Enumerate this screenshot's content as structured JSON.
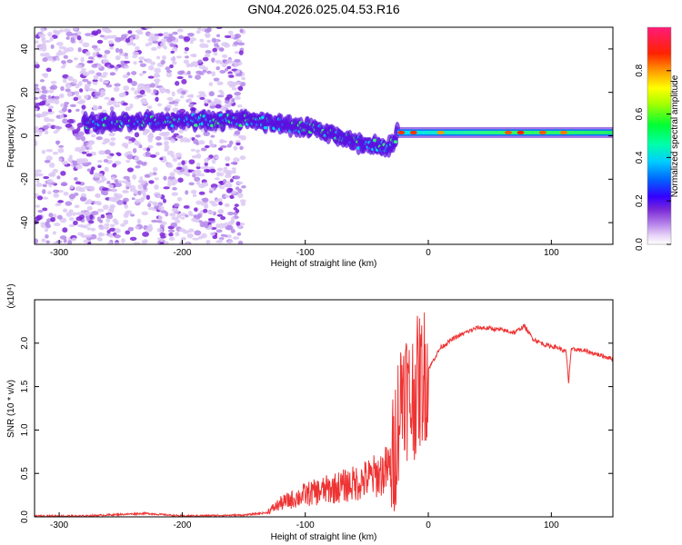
{
  "title": "GN04.2026.025.04.53.R16",
  "chart_data": [
    {
      "type": "heatmap",
      "name": "spectrogram",
      "xlabel": "Height of straight line (km)",
      "ylabel": "Frequency (Hz)",
      "xlim": [
        -320,
        150
      ],
      "ylim": [
        -50,
        50
      ],
      "xticks": [
        -300,
        -200,
        -100,
        0,
        100
      ],
      "xtick_labels": [
        "-300",
        "-200",
        "-100",
        "0",
        "100"
      ],
      "yticks": [
        -40,
        -20,
        0,
        20,
        40
      ],
      "ytick_labels": [
        "-40",
        "-20",
        "0",
        "20",
        "40"
      ],
      "colorbar": {
        "label": "Normalized spectral amplitude",
        "range": [
          0,
          1
        ],
        "ticks": [
          0.0,
          0.2,
          0.4,
          0.6,
          0.8
        ],
        "tick_labels": [
          "0.0",
          "0.2",
          "0.4",
          "0.6",
          "0.8"
        ],
        "colormap": [
          "#ffffff",
          "#d9b8f0",
          "#a060e8",
          "#6a1ad0",
          "#3a00ff",
          "#0077ff",
          "#00e5ff",
          "#00ff66",
          "#ffff00",
          "#ff8800",
          "#ff0000",
          "#ff1493"
        ]
      },
      "features": {
        "noise_region_x": [
          -320,
          -150
        ],
        "signal_track": [
          {
            "x": -280,
            "freq": 6
          },
          {
            "x": -200,
            "freq": 7
          },
          {
            "x": -150,
            "freq": 7
          },
          {
            "x": -100,
            "freq": 4
          },
          {
            "x": -60,
            "freq": -3
          },
          {
            "x": -30,
            "freq": -5
          },
          {
            "x": -25,
            "freq": 1
          },
          {
            "x": 0,
            "freq": 1.5
          },
          {
            "x": 150,
            "freq": 1.5
          }
        ]
      }
    },
    {
      "type": "line",
      "name": "snr",
      "xlabel": "Height of straight line (km)",
      "ylabel": "SNR (10 * v/v)",
      "y_multiplier": "(x10⁴)",
      "xlim": [
        -320,
        150
      ],
      "ylim": [
        0,
        2.5
      ],
      "xticks": [
        -300,
        -200,
        -100,
        0,
        100
      ],
      "xtick_labels": [
        "-300",
        "-200",
        "-100",
        "0",
        "100"
      ],
      "yticks": [
        0,
        0.5,
        1.0,
        1.5,
        2.0
      ],
      "ytick_labels": [
        "0.0",
        "0.5",
        "1.0",
        "1.5",
        "2.0"
      ],
      "color": "#ee3333",
      "x": [
        -320,
        -280,
        -230,
        -200,
        -150,
        -130,
        -120,
        -100,
        -80,
        -60,
        -40,
        -30,
        -25,
        -20,
        -15,
        -10,
        -5,
        0,
        10,
        20,
        30,
        40,
        50,
        60,
        70,
        78,
        85,
        95,
        105,
        112,
        114,
        116,
        120,
        130,
        140,
        150
      ],
      "values": [
        0.01,
        0.01,
        0.04,
        0.01,
        0.02,
        0.05,
        0.12,
        0.2,
        0.25,
        0.3,
        0.38,
        0.45,
        1.1,
        1.6,
        1.3,
        1.5,
        1.6,
        1.7,
        1.95,
        2.05,
        2.12,
        2.18,
        2.17,
        2.15,
        2.12,
        2.2,
        2.05,
        1.98,
        1.95,
        1.9,
        1.55,
        1.92,
        1.93,
        1.9,
        1.86,
        1.82
      ]
    }
  ]
}
